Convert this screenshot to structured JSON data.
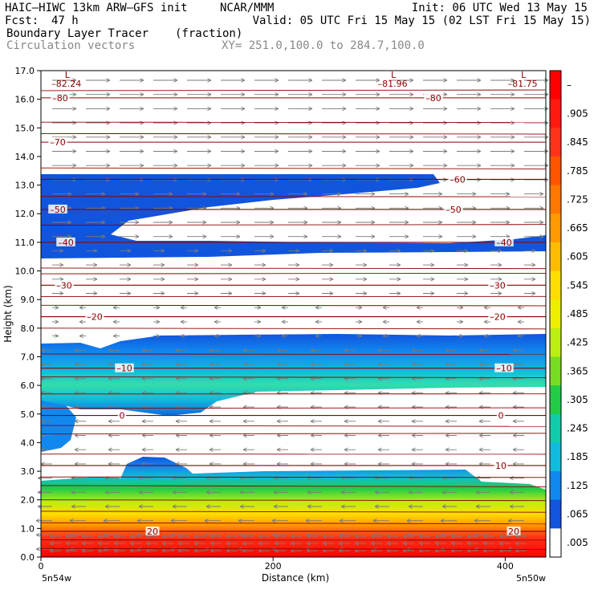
{
  "header": {
    "model": "HAIC–HIWC 13km ARW–GFS init",
    "org": "NCAR/MMM",
    "init": "Init: 06 UTC Wed 13 May 15",
    "fcst_label": "Fcst:",
    "fcst_value": "47 h",
    "valid": "Valid: 05 UTC Fri 15 May 15 (02 LST Fri 15 May 15)",
    "field": "Boundary Layer Tracer",
    "units": "(fraction)",
    "vectors": "Circulation vectors",
    "xy": "XY= 251.0,100.0 to 284.7,100.0"
  },
  "chart_data": {
    "type": "contour",
    "xlabel": "Distance (km)",
    "ylabel": "Height (km)",
    "xlim": [
      0,
      435
    ],
    "ylim": [
      0.0,
      17.0
    ],
    "x_ticks": [
      "0",
      "200",
      "400"
    ],
    "x_tick_values": [
      0,
      200,
      400
    ],
    "y_ticks": [
      "0.0",
      "1.0",
      "2.0",
      "3.0",
      "4.0",
      "5.0",
      "6.0",
      "7.0",
      "8.0",
      "9.0",
      "10.0",
      "11.0",
      "12.0",
      "13.0",
      "14.0",
      "15.0",
      "16.0",
      "17.0"
    ],
    "x_endpoints": {
      "left": "5n54w",
      "right": "5n50w"
    },
    "colorbar": {
      "labels": [
        "–",
        ".905",
        ".845",
        ".785",
        ".725",
        ".665",
        ".605",
        ".545",
        ".485",
        ".425",
        ".365",
        ".305",
        ".245",
        ".185",
        ".125",
        ".065",
        ".005"
      ],
      "colors": [
        "#ff0000",
        "#ff1a0f",
        "#ff3319",
        "#ff5500",
        "#ff7700",
        "#ff9900",
        "#ffbb00",
        "#ffdd00",
        "#eeee00",
        "#bbee11",
        "#77dd22",
        "#22cc44",
        "#11ccaa",
        "#11bbdd",
        "#1188ee",
        "#1155dd",
        "#ffffff"
      ]
    },
    "temperature_contours": [
      {
        "label": "–80",
        "km": 16.05
      },
      {
        "label": "–70",
        "km": 14.5
      },
      {
        "label": "–60",
        "km": 13.2
      },
      {
        "label": "–50",
        "km": 12.15
      },
      {
        "label": "–40",
        "km": 11.0
      },
      {
        "label": "–30",
        "km": 9.5
      },
      {
        "label": "–20",
        "km": 8.4
      },
      {
        "label": "–10",
        "km": 6.6
      },
      {
        "label": "0",
        "km": 4.95
      },
      {
        "label": "10",
        "km": 3.2
      },
      {
        "label": "20",
        "km": 0.9
      }
    ],
    "minima": [
      {
        "label": "–82.24",
        "x": 22
      },
      {
        "label": "–81.96",
        "x": 303
      },
      {
        "label": "–81.75",
        "x": 415
      }
    ],
    "tracer_layers": [
      {
        "name": "upper",
        "bottom_km": 10.9,
        "top_km": 13.3,
        "x_end_km": 345
      },
      {
        "name": "mid",
        "bottom_km": 5.8,
        "top_km": 7.6
      },
      {
        "name": "boundary",
        "bottom_km": 0.0,
        "top_km": 2.7
      }
    ]
  }
}
